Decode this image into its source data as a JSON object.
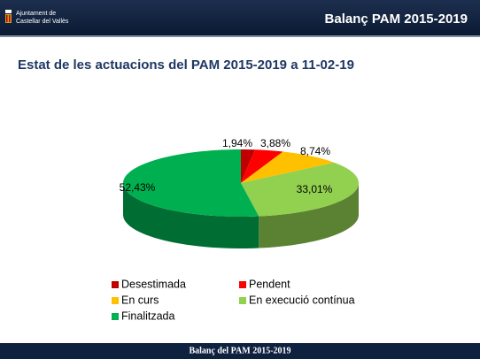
{
  "header": {
    "logo_line1": "Ajuntament de",
    "logo_line2": "Castellar del Vallès",
    "title": "Balanç PAM 2015-2019"
  },
  "chart_data": {
    "type": "pie3d",
    "title": "Estat de les actuacions del PAM 2015-2019 a 11-02-19",
    "categories": [
      "Desestimada",
      "Pendent",
      "En curs",
      "En execució contínua",
      "Finalitzada"
    ],
    "values": [
      1.94,
      3.88,
      8.74,
      33.01,
      52.43
    ],
    "value_labels": [
      "1,94%",
      "3,88%",
      "8,74%",
      "33,01%",
      "52,43%"
    ],
    "colors": [
      "#c00000",
      "#ff0000",
      "#ffc000",
      "#92d050",
      "#00b050"
    ]
  },
  "footer": {
    "text": "Balanç del PAM 2015-2019"
  }
}
